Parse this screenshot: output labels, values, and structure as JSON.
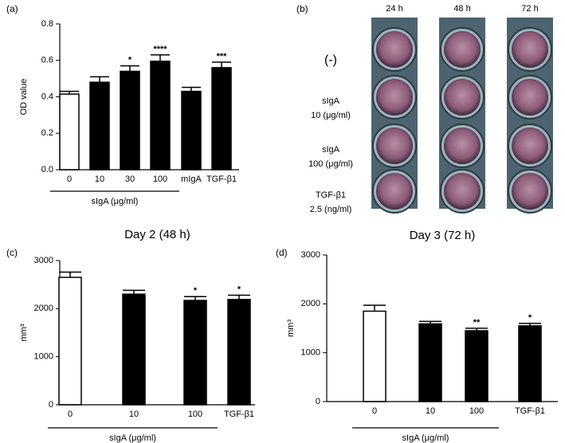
{
  "chart_data": [
    {
      "type": "bar",
      "panel_label": "(a)",
      "ylabel": "OD value",
      "categories": [
        "0",
        "10",
        "30",
        "100",
        "mIgA",
        "TGF-β1"
      ],
      "values": [
        0.415,
        0.48,
        0.54,
        0.595,
        0.43,
        0.56
      ],
      "errors": [
        0.015,
        0.03,
        0.03,
        0.035,
        0.022,
        0.03
      ],
      "significance": [
        null,
        null,
        "*",
        "****",
        null,
        "***"
      ],
      "colors": [
        "#ffffff",
        "#000000",
        "#000000",
        "#000000",
        "#000000",
        "#000000"
      ],
      "ylim": [
        0,
        0.8
      ],
      "yticks": [
        {
          "value": 0,
          "label": "0.0"
        },
        0.2,
        0.4,
        0.6,
        0.8
      ],
      "x_group": {
        "label": "sIgA (μg/ml)",
        "first": 0,
        "last": 3
      }
    },
    {
      "type": "image-grid",
      "panel_label": "(b)",
      "columns": [
        "24 h",
        "48 h",
        "72 h"
      ],
      "rows": [
        [
          "(-)"
        ],
        [
          "sIgA",
          "10 (μg/ml)"
        ],
        [
          "sIgA",
          "100 (μg/ml)"
        ],
        [
          "TGF-β1",
          "2.5 (ng/ml)"
        ]
      ]
    },
    {
      "type": "bar",
      "panel_label": "(c)",
      "title": "Day 2 (48 h)",
      "ylabel": "mm³",
      "categories": [
        "0",
        "10",
        "100",
        "TGF-β1"
      ],
      "values": [
        2650,
        2300,
        2170,
        2190
      ],
      "errors": [
        110,
        80,
        80,
        90
      ],
      "significance": [
        null,
        null,
        "*",
        "*"
      ],
      "colors": [
        "#ffffff",
        "#000000",
        "#000000",
        "#000000"
      ],
      "ylim": [
        0,
        3000
      ],
      "yticks": [
        0,
        1000,
        2000,
        3000
      ],
      "x_group": {
        "label": "sIgA (μg/ml)",
        "first": 0,
        "last": 2
      }
    },
    {
      "type": "bar",
      "panel_label": "(d)",
      "title": "Day 3 (72 h)",
      "ylabel": "mm³",
      "categories": [
        "0",
        "10",
        "100",
        "TGF-β1"
      ],
      "values": [
        1850,
        1590,
        1450,
        1550
      ],
      "errors": [
        120,
        50,
        50,
        50
      ],
      "significance": [
        null,
        null,
        "**",
        "*"
      ],
      "colors": [
        "#ffffff",
        "#000000",
        "#000000",
        "#000000"
      ],
      "ylim": [
        0,
        3000
      ],
      "yticks": [
        0,
        1000,
        2000,
        3000
      ],
      "x_group": {
        "label": "sIgA (μg/ml)",
        "first": 0,
        "last": 2
      }
    }
  ]
}
